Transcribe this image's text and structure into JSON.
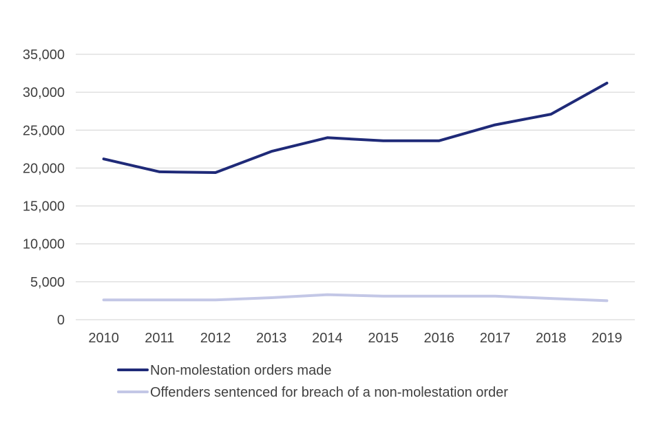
{
  "chart_data": {
    "type": "line",
    "title": "",
    "xlabel": "",
    "ylabel": "",
    "x": [
      "2010",
      "2011",
      "2012",
      "2013",
      "2014",
      "2015",
      "2016",
      "2017",
      "2018",
      "2019"
    ],
    "ylim": [
      0,
      35000
    ],
    "yticks": [
      0,
      5000,
      10000,
      15000,
      20000,
      25000,
      30000,
      35000
    ],
    "ytick_labels": [
      "0",
      "5,000",
      "10,000",
      "15,000",
      "20,000",
      "25,000",
      "30,000",
      "35,000"
    ],
    "grid": true,
    "legend_position": "bottom",
    "series": [
      {
        "name": "Non-molestation orders made",
        "color": "#1f2a78",
        "values": [
          21200,
          19500,
          19400,
          22200,
          24000,
          23600,
          23600,
          25700,
          27100,
          31200
        ]
      },
      {
        "name": "Offenders sentenced for breach of a non-molestation order",
        "color": "#c3c7e6",
        "values": [
          2600,
          2600,
          2600,
          2900,
          3300,
          3100,
          3100,
          3100,
          2800,
          2500
        ]
      }
    ]
  }
}
